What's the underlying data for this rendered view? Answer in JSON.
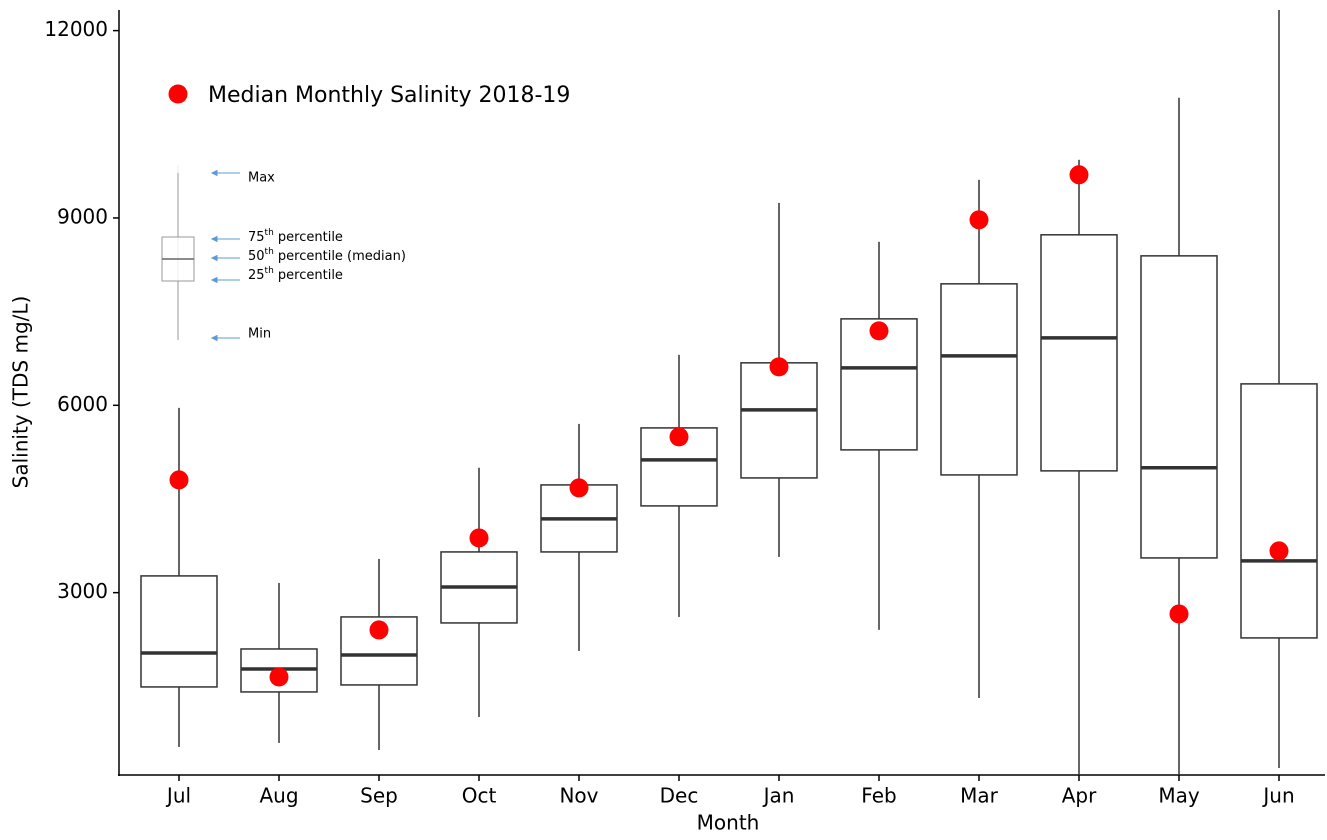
{
  "chart_data": {
    "type": "box",
    "y_label": "Salinity (TDS mg/L)",
    "x_label": "Month",
    "categories": [
      "Jul",
      "Aug",
      "Sep",
      "Oct",
      "Nov",
      "Dec",
      "Jan",
      "Feb",
      "Mar",
      "Apr",
      "May",
      "Jun"
    ],
    "boxes": {
      "min": [
        529,
        593,
        480,
        1009,
        2066,
        2611,
        3572,
        2403,
        1313,
        80,
        80,
        192
      ],
      "q1": [
        1490,
        1410,
        1522,
        2515,
        3652,
        4389,
        4837,
        5286,
        4885,
        4950,
        3556,
        2275
      ],
      "median": [
        2034,
        1778,
        2002,
        3091,
        4181,
        5126,
        5927,
        6600,
        6792,
        7080,
        5000,
        3508
      ],
      "q3": [
        3268,
        2098,
        2611,
        3652,
        4725,
        5638,
        6680,
        7384,
        7945,
        8730,
        8393,
        6343
      ],
      "max": [
        5958,
        3155,
        3540,
        5000,
        5702,
        6808,
        9242,
        8618,
        9611,
        9931,
        10924,
        12330
      ],
      "color": "#333333"
    },
    "series": [
      {
        "name": "Median Monthly Salinity 2018-19",
        "color": "#ff0000",
        "values": [
          4805,
          1650,
          2403,
          3876,
          4677,
          5494,
          6615,
          7192,
          8970,
          9691,
          2659,
          3668
        ]
      }
    ],
    "ylim": [
      80,
      12330
    ],
    "yticks": [
      3000,
      6000,
      9000,
      12000
    ],
    "grid": false,
    "legend_position": "upper-left",
    "key": {
      "max": "Max",
      "q3": {
        "lead": "75",
        "sup": "th",
        "rest": " percentile"
      },
      "median": {
        "lead": "50",
        "sup": "th",
        "rest": " percentile (median)"
      },
      "q1": {
        "lead": "25",
        "sup": "th",
        "rest": " percentile"
      },
      "min": "Min"
    }
  }
}
